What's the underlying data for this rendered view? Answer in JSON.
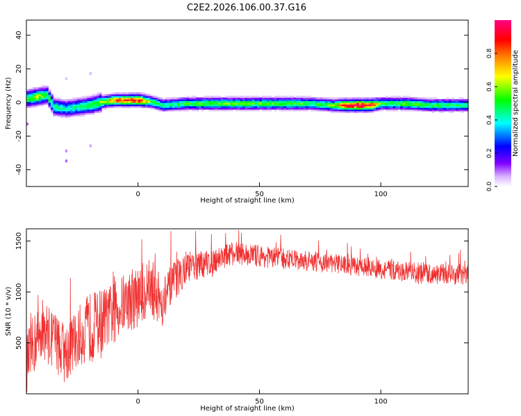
{
  "title": "C2E2.2026.106.00.37.G16",
  "chart_data": [
    {
      "type": "heatmap",
      "xlabel": "Height of straight line (km)",
      "ylabel": "Frequency (Hz)",
      "xlim": [
        -46,
        136
      ],
      "ylim": [
        -50,
        49
      ],
      "xticks": [
        0,
        50,
        100
      ],
      "yticks": [
        -40,
        -20,
        0,
        20,
        40
      ],
      "colorbar": {
        "label": "Normalized spectral amplitude",
        "ticks": [
          0.0,
          0.2,
          0.4,
          0.6,
          0.8
        ],
        "range": [
          0,
          1
        ],
        "colormap": [
          "#ffffff",
          "#d9b3ff",
          "#8000ff",
          "#0000ff",
          "#00ffff",
          "#00ff00",
          "#ffff00",
          "#ff8000",
          "#ff0000",
          "#ff0080"
        ]
      },
      "ridge": {
        "description_points_x": [
          -46,
          -42,
          -38,
          -35,
          -30,
          -25,
          -20,
          -15,
          -10,
          -5,
          0,
          5,
          10,
          20,
          30,
          40,
          50,
          60,
          70,
          80,
          85,
          90,
          95,
          100,
          110,
          120,
          130,
          136
        ],
        "frequency_hz": [
          2,
          3,
          4,
          -3,
          -4,
          -3,
          -2,
          0,
          1,
          1,
          1,
          0,
          -2,
          -1,
          -1,
          -1,
          -1,
          -1,
          -1,
          -2,
          -2,
          -2,
          -2,
          -1,
          -1,
          -2,
          -2,
          -2
        ],
        "amplitude": [
          0.5,
          0.6,
          0.5,
          0.45,
          0.4,
          0.45,
          0.5,
          0.6,
          0.8,
          0.85,
          0.9,
          0.5,
          0.45,
          0.5,
          0.55,
          0.55,
          0.55,
          0.55,
          0.5,
          0.55,
          0.9,
          0.95,
          0.95,
          0.5,
          0.55,
          0.5,
          0.5,
          0.45
        ]
      }
    },
    {
      "type": "line",
      "xlabel": "Height of straight line (km)",
      "ylabel": "SNR (10 * v/v)",
      "xlim": [
        -46,
        136
      ],
      "ylim": [
        0,
        1620
      ],
      "xticks": [
        0,
        50,
        100
      ],
      "yticks": [
        500,
        1000,
        1500
      ],
      "color": "#f03030",
      "series": [
        {
          "x": [
            -46,
            -40,
            -35,
            -30,
            -25,
            -20,
            -15,
            -10,
            -5,
            0,
            5,
            10,
            15,
            20,
            25,
            30,
            35,
            40,
            45,
            50,
            60,
            70,
            80,
            90,
            100,
            110,
            120,
            130,
            136
          ],
          "values": [
            300,
            650,
            550,
            400,
            550,
            650,
            700,
            800,
            900,
            950,
            1050,
            900,
            1100,
            1250,
            1250,
            1300,
            1350,
            1380,
            1370,
            1350,
            1330,
            1300,
            1280,
            1260,
            1220,
            1200,
            1180,
            1170,
            1170
          ],
          "noise_amplitude": [
            300,
            300,
            300,
            300,
            300,
            350,
            350,
            300,
            300,
            300,
            300,
            250,
            200,
            150,
            140,
            130,
            120,
            110,
            110,
            110,
            100,
            100,
            100,
            100,
            100,
            100,
            100,
            100,
            100
          ]
        }
      ]
    }
  ]
}
